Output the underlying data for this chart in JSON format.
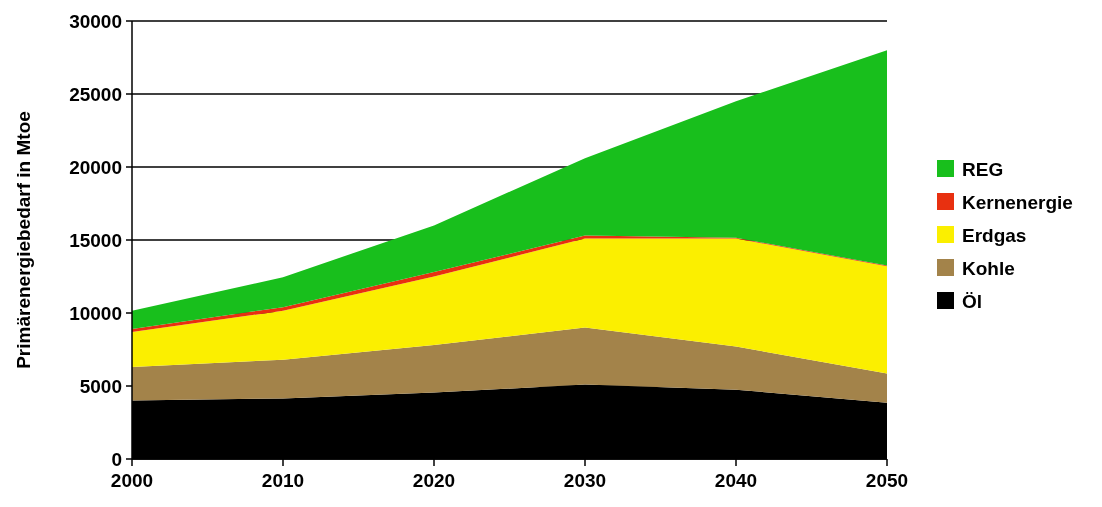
{
  "chart_data": {
    "type": "area",
    "stacked": true,
    "ylabel": "Primärenergiebedarf in Mtoe",
    "x": [
      2000,
      2010,
      2020,
      2030,
      2040,
      2050
    ],
    "xlim": [
      2000,
      2050
    ],
    "xticks": [
      2000,
      2010,
      2020,
      2030,
      2040,
      2050
    ],
    "ylim": [
      0,
      30000
    ],
    "yticks": [
      0,
      5000,
      10000,
      15000,
      20000,
      25000,
      30000
    ],
    "grid": "y",
    "legend": "right",
    "series": [
      {
        "name": "Öl",
        "color": "#000000",
        "values": [
          4000,
          4150,
          4550,
          5100,
          4750,
          3850
        ]
      },
      {
        "name": "Kohle",
        "color": "#a3834a",
        "values": [
          2300,
          2650,
          3250,
          3900,
          2950,
          2000
        ]
      },
      {
        "name": "Erdgas",
        "color": "#fbef00",
        "values": [
          2400,
          3350,
          4700,
          6100,
          7400,
          7350
        ]
      },
      {
        "name": "Kernenergie",
        "color": "#e83010",
        "values": [
          200,
          250,
          300,
          200,
          50,
          50
        ]
      },
      {
        "name": "REG",
        "color": "#18bf1c",
        "values": [
          1250,
          2050,
          3200,
          5300,
          9350,
          14750
        ]
      }
    ]
  }
}
